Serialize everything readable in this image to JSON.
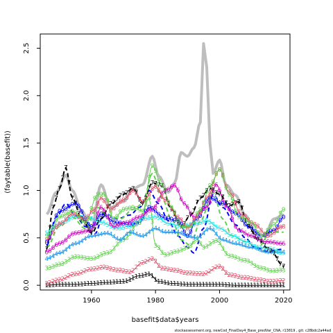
{
  "chart_data": {
    "type": "line",
    "title": "",
    "xlabel": "basefit$data$years",
    "ylabel": "(faytable(basefit))",
    "xlim": [
      1944,
      2022
    ],
    "ylim": [
      -0.05,
      2.65
    ],
    "xticks": [
      1960,
      1980,
      2000,
      2020
    ],
    "yticks": [
      0.0,
      0.5,
      1.0,
      1.5,
      2.0,
      2.5
    ],
    "ytick_labels": [
      "0.0",
      "0.5",
      "1.0",
      "1.5",
      "2.0",
      "2.5"
    ],
    "footer": "stockassessment.org, newCod_FinalDay4_Base_predVar_CNA, r13819 , git: c28bdc2a44ad",
    "x_start": 1946,
    "x_end": 2020,
    "series": [
      {
        "label": "0",
        "color": "#0000ff",
        "dashed": false,
        "lw": 1,
        "points": [
          [
            1946,
            0.45
          ],
          [
            1950,
            0.78
          ],
          [
            1955,
            0.86
          ],
          [
            1960,
            0.62
          ],
          [
            1963,
            0.75
          ],
          [
            1968,
            0.66
          ],
          [
            1972,
            0.64
          ],
          [
            1975,
            0.66
          ],
          [
            1978,
            0.82
          ],
          [
            1983,
            0.71
          ],
          [
            1987,
            0.68
          ],
          [
            1990,
            0.52
          ],
          [
            1993,
            0.7
          ],
          [
            1997,
            0.92
          ],
          [
            2001,
            0.86
          ],
          [
            2005,
            0.76
          ],
          [
            2009,
            0.62
          ],
          [
            2013,
            0.52
          ],
          [
            2017,
            0.58
          ],
          [
            2020,
            0.72
          ]
        ]
      },
      {
        "label": "1",
        "color": "#000000",
        "dashed": false,
        "lw": 1,
        "points": [
          [
            1946,
            0.0
          ],
          [
            1950,
            0.01
          ],
          [
            1955,
            0.01
          ],
          [
            1960,
            0.02
          ],
          [
            1965,
            0.03
          ],
          [
            1970,
            0.04
          ],
          [
            1975,
            0.1
          ],
          [
            1978,
            0.12
          ],
          [
            1981,
            0.04
          ],
          [
            1985,
            0.02
          ],
          [
            1990,
            0.01
          ],
          [
            1995,
            0.01
          ],
          [
            2000,
            0.01
          ],
          [
            2005,
            0.0
          ],
          [
            2010,
            0.0
          ],
          [
            2015,
            0.0
          ],
          [
            2020,
            0.0
          ]
        ]
      },
      {
        "label": "2",
        "color": "#df536b",
        "dashed": false,
        "lw": 1,
        "points": [
          [
            1946,
            0.02
          ],
          [
            1950,
            0.06
          ],
          [
            1955,
            0.12
          ],
          [
            1960,
            0.17
          ],
          [
            1964,
            0.19
          ],
          [
            1968,
            0.16
          ],
          [
            1972,
            0.14
          ],
          [
            1976,
            0.24
          ],
          [
            1979,
            0.28
          ],
          [
            1982,
            0.18
          ],
          [
            1986,
            0.16
          ],
          [
            1990,
            0.13
          ],
          [
            1995,
            0.12
          ],
          [
            2000,
            0.2
          ],
          [
            2003,
            0.11
          ],
          [
            2008,
            0.08
          ],
          [
            2012,
            0.06
          ],
          [
            2016,
            0.04
          ],
          [
            2020,
            0.05
          ]
        ]
      },
      {
        "label": "3",
        "color": "#61d04f",
        "dashed": false,
        "lw": 1,
        "points": [
          [
            1946,
            0.18
          ],
          [
            1950,
            0.22
          ],
          [
            1955,
            0.3
          ],
          [
            1960,
            0.28
          ],
          [
            1965,
            0.34
          ],
          [
            1970,
            0.48
          ],
          [
            1975,
            0.66
          ],
          [
            1978,
            0.92
          ],
          [
            1980,
            0.42
          ],
          [
            1983,
            0.32
          ],
          [
            1987,
            0.36
          ],
          [
            1990,
            0.4
          ],
          [
            1993,
            0.48
          ],
          [
            1995,
            0.4
          ],
          [
            1999,
            0.47
          ],
          [
            2003,
            0.31
          ],
          [
            2008,
            0.26
          ],
          [
            2013,
            0.18
          ],
          [
            2016,
            0.15
          ],
          [
            2020,
            0.16
          ]
        ]
      },
      {
        "label": "4",
        "color": "#2297e6",
        "dashed": false,
        "lw": 1,
        "points": [
          [
            1946,
            0.28
          ],
          [
            1950,
            0.34
          ],
          [
            1955,
            0.44
          ],
          [
            1960,
            0.52
          ],
          [
            1965,
            0.55
          ],
          [
            1969,
            0.48
          ],
          [
            1972,
            0.56
          ],
          [
            1976,
            0.52
          ],
          [
            1980,
            0.6
          ],
          [
            1983,
            0.56
          ],
          [
            1987,
            0.56
          ],
          [
            1990,
            0.52
          ],
          [
            1993,
            0.5
          ],
          [
            1997,
            0.6
          ],
          [
            2001,
            0.48
          ],
          [
            2005,
            0.44
          ],
          [
            2010,
            0.4
          ],
          [
            2015,
            0.35
          ],
          [
            2020,
            0.35
          ]
        ]
      },
      {
        "label": "5",
        "color": "#28e2e5",
        "dashed": false,
        "lw": 1,
        "points": [
          [
            1946,
            0.55
          ],
          [
            1950,
            0.65
          ],
          [
            1955,
            0.72
          ],
          [
            1960,
            0.7
          ],
          [
            1963,
            0.66
          ],
          [
            1968,
            0.6
          ],
          [
            1972,
            0.62
          ],
          [
            1976,
            0.7
          ],
          [
            1980,
            0.72
          ],
          [
            1984,
            0.65
          ],
          [
            1988,
            0.62
          ],
          [
            1992,
            0.64
          ],
          [
            1996,
            0.68
          ],
          [
            2000,
            0.6
          ],
          [
            2004,
            0.52
          ],
          [
            2008,
            0.46
          ],
          [
            2012,
            0.4
          ],
          [
            2016,
            0.38
          ],
          [
            2020,
            0.34
          ]
        ]
      },
      {
        "label": "6",
        "color": "#cd0bbc",
        "dashed": false,
        "lw": 1,
        "points": [
          [
            1946,
            0.35
          ],
          [
            1950,
            0.44
          ],
          [
            1955,
            0.55
          ],
          [
            1960,
            0.58
          ],
          [
            1963,
            0.82
          ],
          [
            1967,
            0.62
          ],
          [
            1971,
            0.66
          ],
          [
            1975,
            0.72
          ],
          [
            1979,
            0.8
          ],
          [
            1983,
            1.0
          ],
          [
            1986,
            1.05
          ],
          [
            1989,
            0.86
          ],
          [
            1992,
            0.72
          ],
          [
            1996,
            0.82
          ],
          [
            1999,
            1.06
          ],
          [
            2002,
            0.84
          ],
          [
            2006,
            0.58
          ],
          [
            2010,
            0.52
          ],
          [
            2014,
            0.46
          ],
          [
            2020,
            0.44
          ]
        ]
      },
      {
        "label": "7",
        "color": "#000000",
        "dashed": true,
        "lw": 2,
        "points": [
          [
            1946,
            0.38
          ],
          [
            1948,
            0.82
          ],
          [
            1950,
            1.02
          ],
          [
            1952,
            1.24
          ],
          [
            1954,
            0.92
          ],
          [
            1957,
            0.7
          ],
          [
            1960,
            0.55
          ],
          [
            1963,
            0.7
          ],
          [
            1966,
            0.86
          ],
          [
            1970,
            0.96
          ],
          [
            1973,
            1.02
          ],
          [
            1976,
            0.86
          ],
          [
            1979,
            1.08
          ],
          [
            1982,
            1.05
          ],
          [
            1985,
            0.8
          ],
          [
            1988,
            0.62
          ],
          [
            1991,
            0.74
          ],
          [
            1994,
            0.92
          ],
          [
            1997,
            1.02
          ],
          [
            2000,
            0.96
          ],
          [
            2003,
            0.84
          ],
          [
            2006,
            0.88
          ],
          [
            2009,
            0.62
          ],
          [
            2012,
            0.48
          ],
          [
            2016,
            0.36
          ],
          [
            2020,
            0.2
          ]
        ]
      },
      {
        "label": "8",
        "color": "#df536b",
        "dashed": false,
        "lw": 1,
        "points": [
          [
            1946,
            0.48
          ],
          [
            1950,
            0.64
          ],
          [
            1954,
            0.75
          ],
          [
            1958,
            0.7
          ],
          [
            1961,
            0.8
          ],
          [
            1963,
            0.92
          ],
          [
            1966,
            0.8
          ],
          [
            1970,
            0.9
          ],
          [
            1973,
            1.0
          ],
          [
            1976,
            0.88
          ],
          [
            1980,
            1.04
          ],
          [
            1983,
            0.9
          ],
          [
            1987,
            0.72
          ],
          [
            1990,
            0.6
          ],
          [
            1993,
            0.72
          ],
          [
            1996,
            0.92
          ],
          [
            2000,
            1.22
          ],
          [
            2003,
            0.98
          ],
          [
            2007,
            0.74
          ],
          [
            2011,
            0.64
          ],
          [
            2015,
            0.52
          ],
          [
            2020,
            0.62
          ]
        ]
      },
      {
        "label": "9",
        "color": "#61d04f",
        "dashed": false,
        "lw": 1,
        "points": [
          [
            1946,
            0.52
          ],
          [
            1950,
            0.72
          ],
          [
            1954,
            0.78
          ],
          [
            1958,
            0.66
          ],
          [
            1962,
            0.96
          ],
          [
            1964,
            0.96
          ],
          [
            1967,
            0.7
          ],
          [
            1970,
            0.8
          ],
          [
            1973,
            0.82
          ],
          [
            1976,
            0.78
          ],
          [
            1979,
            1.26
          ],
          [
            1982,
            1.05
          ],
          [
            1985,
            0.82
          ],
          [
            1988,
            0.62
          ],
          [
            1991,
            0.62
          ],
          [
            1994,
            0.8
          ],
          [
            1997,
            1.05
          ],
          [
            2000,
            1.22
          ],
          [
            2003,
            0.96
          ],
          [
            2006,
            0.72
          ],
          [
            2010,
            0.66
          ],
          [
            2013,
            0.52
          ],
          [
            2017,
            0.64
          ],
          [
            2020,
            0.8
          ]
        ]
      },
      {
        "label": "",
        "color": "#bebebe",
        "dashed": false,
        "lw": 4,
        "points": [
          [
            1946,
            0.75
          ],
          [
            1949,
            0.98
          ],
          [
            1952,
            1.16
          ],
          [
            1954,
            1.0
          ],
          [
            1957,
            0.78
          ],
          [
            1960,
            0.6
          ],
          [
            1963,
            1.06
          ],
          [
            1966,
            0.82
          ],
          [
            1970,
            0.88
          ],
          [
            1973,
            1.02
          ],
          [
            1976,
            1.06
          ],
          [
            1979,
            1.36
          ],
          [
            1981,
            1.15
          ],
          [
            1984,
            0.98
          ],
          [
            1986,
            1.08
          ],
          [
            1988,
            1.4
          ],
          [
            1990,
            1.36
          ],
          [
            1992,
            1.45
          ],
          [
            1994,
            1.72
          ],
          [
            1995,
            2.55
          ],
          [
            1996,
            2.3
          ],
          [
            1997,
            1.5
          ],
          [
            1998,
            1.18
          ],
          [
            2000,
            1.32
          ],
          [
            2002,
            1.06
          ],
          [
            2005,
            0.95
          ],
          [
            2008,
            0.74
          ],
          [
            2011,
            0.56
          ],
          [
            2014,
            0.52
          ],
          [
            2017,
            0.7
          ],
          [
            2020,
            0.74
          ]
        ]
      },
      {
        "label": "",
        "color": "#0000ff",
        "dashed": true,
        "lw": 2,
        "points": [
          [
            1946,
            0.42
          ],
          [
            1949,
            0.72
          ],
          [
            1952,
            0.86
          ],
          [
            1955,
            0.74
          ],
          [
            1958,
            0.62
          ],
          [
            1961,
            0.54
          ],
          [
            1964,
            0.76
          ],
          [
            1968,
            0.7
          ],
          [
            1972,
            0.74
          ],
          [
            1975,
            0.82
          ],
          [
            1978,
            1.0
          ],
          [
            1981,
            0.86
          ],
          [
            1984,
            0.68
          ],
          [
            1987,
            0.52
          ],
          [
            1990,
            0.4
          ],
          [
            1992,
            0.34
          ],
          [
            1995,
            0.6
          ],
          [
            1998,
            0.96
          ],
          [
            2001,
            0.82
          ],
          [
            2005,
            0.64
          ],
          [
            2008,
            0.5
          ],
          [
            2011,
            0.4
          ],
          [
            2015,
            0.36
          ],
          [
            2020,
            0.38
          ]
        ]
      },
      {
        "label": "",
        "color": "#61d04f",
        "dashed": true,
        "lw": 2,
        "points": [
          [
            1946,
            0.4
          ],
          [
            1950,
            0.62
          ],
          [
            1954,
            0.72
          ],
          [
            1958,
            0.6
          ],
          [
            1962,
            0.82
          ],
          [
            1965,
            0.74
          ],
          [
            1969,
            0.7
          ],
          [
            1973,
            0.8
          ],
          [
            1976,
            0.86
          ],
          [
            1979,
            1.18
          ],
          [
            1982,
            0.92
          ],
          [
            1985,
            0.7
          ],
          [
            1988,
            0.48
          ],
          [
            1991,
            0.42
          ],
          [
            1994,
            0.68
          ],
          [
            1998,
            0.98
          ],
          [
            2001,
            0.7
          ],
          [
            2004,
            0.52
          ],
          [
            2008,
            0.46
          ],
          [
            2012,
            0.4
          ],
          [
            2016,
            0.56
          ],
          [
            2020,
            0.56
          ]
        ]
      }
    ]
  }
}
